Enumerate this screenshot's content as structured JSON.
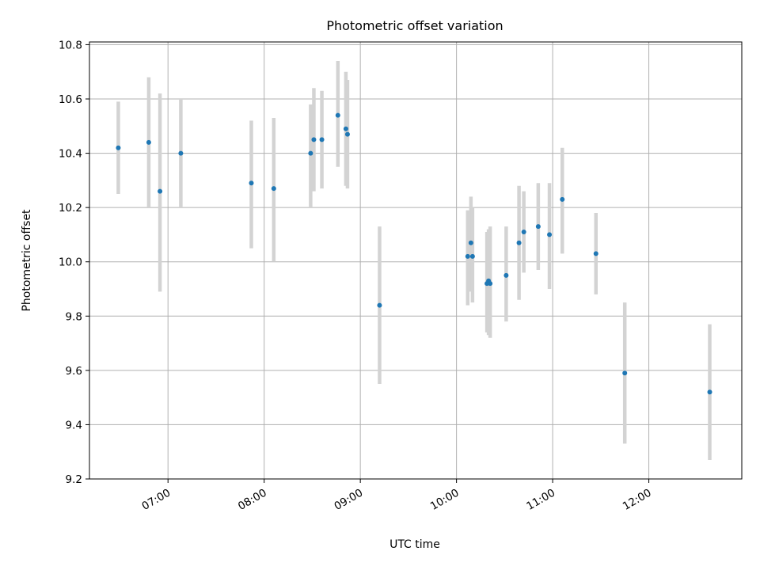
{
  "chart_data": {
    "type": "scatter",
    "title": "Photometric offset variation",
    "xlabel": "UTC time",
    "ylabel": "Photometric offset",
    "x_axis_type": "time",
    "xlim": [
      "06:11",
      "12:58"
    ],
    "ylim": [
      9.2,
      10.81
    ],
    "xticks": [
      "07:00",
      "08:00",
      "09:00",
      "10:00",
      "11:00",
      "12:00"
    ],
    "yticks": [
      "9.2",
      "9.4",
      "9.6",
      "9.8",
      "10.0",
      "10.2",
      "10.4",
      "10.6",
      "10.8"
    ],
    "grid": true,
    "point_color": "#1f77b4",
    "errorbar_color": "#d3d3d3",
    "points": [
      {
        "x": "06:29",
        "y": 10.42,
        "ylow": 10.25,
        "yhigh": 10.59
      },
      {
        "x": "06:48",
        "y": 10.44,
        "ylow": 10.2,
        "yhigh": 10.68
      },
      {
        "x": "06:55",
        "y": 10.26,
        "ylow": 9.89,
        "yhigh": 10.62
      },
      {
        "x": "07:08",
        "y": 10.4,
        "ylow": 10.2,
        "yhigh": 10.6
      },
      {
        "x": "07:52",
        "y": 10.29,
        "ylow": 10.05,
        "yhigh": 10.52
      },
      {
        "x": "08:06",
        "y": 10.27,
        "ylow": 10.0,
        "yhigh": 10.53
      },
      {
        "x": "08:29",
        "y": 10.4,
        "ylow": 10.2,
        "yhigh": 10.58
      },
      {
        "x": "08:31",
        "y": 10.45,
        "ylow": 10.26,
        "yhigh": 10.64
      },
      {
        "x": "08:36",
        "y": 10.45,
        "ylow": 10.27,
        "yhigh": 10.63
      },
      {
        "x": "08:46",
        "y": 10.54,
        "ylow": 10.35,
        "yhigh": 10.74
      },
      {
        "x": "08:51",
        "y": 10.49,
        "ylow": 10.28,
        "yhigh": 10.7
      },
      {
        "x": "08:52",
        "y": 10.47,
        "ylow": 10.27,
        "yhigh": 10.67
      },
      {
        "x": "09:12",
        "y": 9.84,
        "ylow": 9.55,
        "yhigh": 10.13
      },
      {
        "x": "10:07",
        "y": 10.02,
        "ylow": 9.84,
        "yhigh": 10.19
      },
      {
        "x": "10:09",
        "y": 10.07,
        "ylow": 9.89,
        "yhigh": 10.24
      },
      {
        "x": "10:10",
        "y": 10.02,
        "ylow": 9.85,
        "yhigh": 10.2
      },
      {
        "x": "10:19",
        "y": 9.92,
        "ylow": 9.74,
        "yhigh": 10.11
      },
      {
        "x": "10:20",
        "y": 9.93,
        "ylow": 9.73,
        "yhigh": 10.12
      },
      {
        "x": "10:21",
        "y": 9.92,
        "ylow": 9.72,
        "yhigh": 10.13
      },
      {
        "x": "10:31",
        "y": 9.95,
        "ylow": 9.78,
        "yhigh": 10.13
      },
      {
        "x": "10:39",
        "y": 10.07,
        "ylow": 9.86,
        "yhigh": 10.28
      },
      {
        "x": "10:42",
        "y": 10.11,
        "ylow": 9.96,
        "yhigh": 10.26
      },
      {
        "x": "10:51",
        "y": 10.13,
        "ylow": 9.97,
        "yhigh": 10.29
      },
      {
        "x": "10:58",
        "y": 10.1,
        "ylow": 9.9,
        "yhigh": 10.29
      },
      {
        "x": "11:06",
        "y": 10.23,
        "ylow": 10.03,
        "yhigh": 10.42
      },
      {
        "x": "11:27",
        "y": 10.03,
        "ylow": 9.88,
        "yhigh": 10.18
      },
      {
        "x": "11:45",
        "y": 9.59,
        "ylow": 9.33,
        "yhigh": 9.85
      },
      {
        "x": "12:38",
        "y": 9.52,
        "ylow": 9.27,
        "yhigh": 9.77
      }
    ]
  }
}
